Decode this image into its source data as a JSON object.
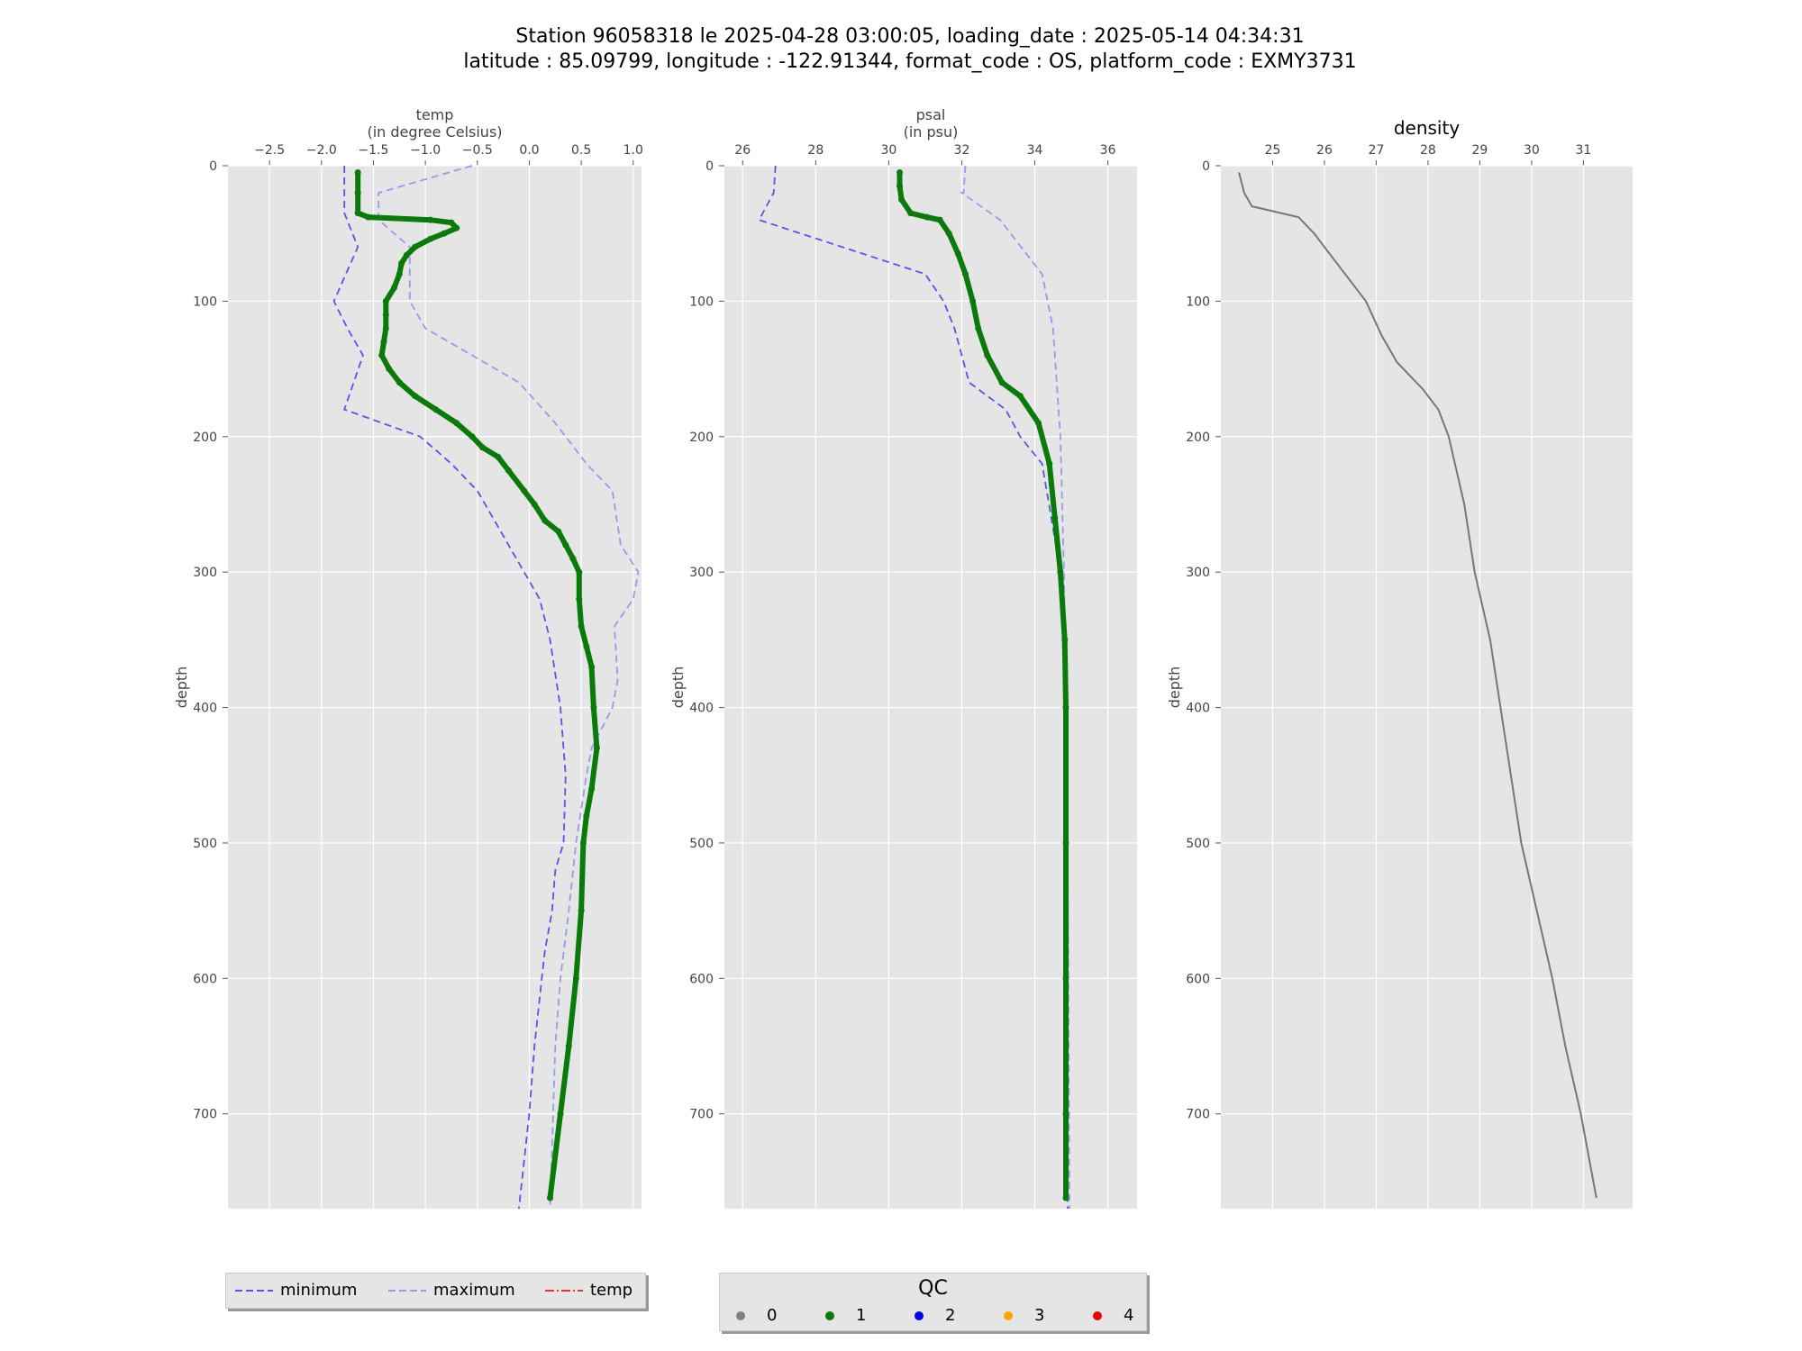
{
  "title": {
    "line1": "Station 96058318 le 2025-04-28 03:00:05, loading_date : 2025-05-14 04:34:31",
    "line2": "latitude : 85.09799, longitude : -122.91344, format_code : OS, platform_code : EXMY3731"
  },
  "colors": {
    "minimum": "#5555ee",
    "maximum": "#9999ee",
    "temp_line": "#ee3333",
    "qc1": "#0a7a0a",
    "density": "#777777",
    "panel_bg": "#e5e5e5",
    "grid": "#ffffff"
  },
  "legend": {
    "minimum": "minimum",
    "maximum": "maximum",
    "temp": "temp"
  },
  "qc_legend": {
    "title": "QC",
    "items": [
      {
        "label": "0",
        "color": "#808080"
      },
      {
        "label": "1",
        "color": "#0a7a0a"
      },
      {
        "label": "2",
        "color": "#0000ee"
      },
      {
        "label": "3",
        "color": "#ffa500"
      },
      {
        "label": "4",
        "color": "#ee0000"
      }
    ]
  },
  "chart_data": [
    {
      "type": "line",
      "title": "temp\n(in degree Celsius)",
      "xlabel": "",
      "ylabel": "depth",
      "xlim": [
        -2.9,
        1.08
      ],
      "ylim": [
        770,
        0
      ],
      "y_inverted": true,
      "x_axis_position": "top",
      "xticks": [
        -2.5,
        -2.0,
        -1.5,
        -1.0,
        -0.5,
        0.0,
        0.5,
        1.0
      ],
      "xtick_labels": [
        "−2.5",
        "−2.0",
        "−1.5",
        "−1.0",
        "−0.5",
        "0.0",
        "0.5",
        "1.0"
      ],
      "yticks": [
        0,
        100,
        200,
        300,
        400,
        500,
        600,
        700
      ],
      "ytick_labels": [
        "0",
        "100",
        "200",
        "300",
        "400",
        "500",
        "600",
        "700"
      ],
      "series": [
        {
          "name": "minimum",
          "style": "dashed",
          "color": "#5555ee",
          "points": [
            [
              -1.78,
              0
            ],
            [
              -1.78,
              35
            ],
            [
              -1.65,
              60
            ],
            [
              -1.88,
              100
            ],
            [
              -1.75,
              120
            ],
            [
              -1.6,
              140
            ],
            [
              -1.78,
              180
            ],
            [
              -1.05,
              200
            ],
            [
              -0.75,
              220
            ],
            [
              -0.5,
              240
            ],
            [
              -0.35,
              260
            ],
            [
              -0.05,
              300
            ],
            [
              0.1,
              320
            ],
            [
              0.2,
              350
            ],
            [
              0.3,
              400
            ],
            [
              0.35,
              450
            ],
            [
              0.33,
              500
            ],
            [
              0.25,
              520
            ],
            [
              0.22,
              550
            ],
            [
              0.15,
              580
            ],
            [
              0.12,
              600
            ],
            [
              0.05,
              650
            ],
            [
              0.0,
              700
            ],
            [
              -0.1,
              770
            ]
          ]
        },
        {
          "name": "maximum",
          "style": "dashed",
          "color": "#9999ee",
          "points": [
            [
              -0.55,
              0
            ],
            [
              -1.45,
              20
            ],
            [
              -1.45,
              40
            ],
            [
              -1.15,
              60
            ],
            [
              -1.15,
              80
            ],
            [
              -1.15,
              100
            ],
            [
              -1.0,
              120
            ],
            [
              -0.55,
              140
            ],
            [
              -0.1,
              160
            ],
            [
              0.25,
              190
            ],
            [
              0.55,
              220
            ],
            [
              0.8,
              240
            ],
            [
              0.88,
              280
            ],
            [
              1.05,
              300
            ],
            [
              1.0,
              320
            ],
            [
              0.82,
              340
            ],
            [
              0.85,
              380
            ],
            [
              0.8,
              400
            ],
            [
              0.6,
              430
            ],
            [
              0.55,
              450
            ],
            [
              0.45,
              500
            ],
            [
              0.38,
              550
            ],
            [
              0.3,
              600
            ],
            [
              0.25,
              650
            ],
            [
              0.2,
              770
            ]
          ]
        },
        {
          "name": "temp",
          "style": "dashdot",
          "color": "#ee3333",
          "points": []
        }
      ],
      "qc1": [
        [
          -1.65,
          5
        ],
        [
          -1.65,
          20
        ],
        [
          -1.65,
          35
        ],
        [
          -1.55,
          38
        ],
        [
          -0.95,
          40
        ],
        [
          -0.75,
          42
        ],
        [
          -0.7,
          46
        ],
        [
          -0.82,
          50
        ],
        [
          -0.95,
          54
        ],
        [
          -1.1,
          60
        ],
        [
          -1.18,
          66
        ],
        [
          -1.23,
          72
        ],
        [
          -1.25,
          80
        ],
        [
          -1.3,
          90
        ],
        [
          -1.38,
          100
        ],
        [
          -1.38,
          110
        ],
        [
          -1.38,
          120
        ],
        [
          -1.4,
          130
        ],
        [
          -1.42,
          140
        ],
        [
          -1.35,
          150
        ],
        [
          -1.25,
          160
        ],
        [
          -1.1,
          170
        ],
        [
          -0.9,
          180
        ],
        [
          -0.7,
          190
        ],
        [
          -0.55,
          200
        ],
        [
          -0.45,
          208
        ],
        [
          -0.3,
          215
        ],
        [
          -0.2,
          225
        ],
        [
          -0.05,
          240
        ],
        [
          0.05,
          250
        ],
        [
          0.15,
          262
        ],
        [
          0.28,
          270
        ],
        [
          0.35,
          280
        ],
        [
          0.42,
          290
        ],
        [
          0.48,
          300
        ],
        [
          0.48,
          320
        ],
        [
          0.5,
          340
        ],
        [
          0.55,
          355
        ],
        [
          0.6,
          370
        ],
        [
          0.62,
          400
        ],
        [
          0.65,
          430
        ],
        [
          0.6,
          460
        ],
        [
          0.55,
          480
        ],
        [
          0.52,
          500
        ],
        [
          0.5,
          550
        ],
        [
          0.45,
          600
        ],
        [
          0.38,
          650
        ],
        [
          0.3,
          700
        ],
        [
          0.2,
          762
        ]
      ]
    },
    {
      "type": "line",
      "title": "psal\n(in psu)",
      "xlabel": "",
      "ylabel": "depth",
      "xlim": [
        25.5,
        36.8
      ],
      "ylim": [
        770,
        0
      ],
      "y_inverted": true,
      "x_axis_position": "top",
      "xticks": [
        26,
        28,
        30,
        32,
        34,
        36
      ],
      "xtick_labels": [
        "26",
        "28",
        "30",
        "32",
        "34",
        "36"
      ],
      "yticks": [
        0,
        100,
        200,
        300,
        400,
        500,
        600,
        700
      ],
      "ytick_labels": [
        "0",
        "100",
        "200",
        "300",
        "400",
        "500",
        "600",
        "700"
      ],
      "series": [
        {
          "name": "minimum",
          "style": "dashed",
          "color": "#5555ee",
          "points": [
            [
              26.9,
              0
            ],
            [
              26.85,
              20
            ],
            [
              26.45,
              40
            ],
            [
              31.0,
              80
            ],
            [
              31.5,
              100
            ],
            [
              31.8,
              120
            ],
            [
              32.2,
              160
            ],
            [
              33.2,
              180
            ],
            [
              33.6,
              200
            ],
            [
              34.2,
              220
            ],
            [
              34.45,
              260
            ],
            [
              34.7,
              300
            ],
            [
              34.85,
              400
            ],
            [
              34.88,
              600
            ],
            [
              34.9,
              770
            ]
          ]
        },
        {
          "name": "maximum",
          "style": "dashed",
          "color": "#9999ee",
          "points": [
            [
              32.1,
              0
            ],
            [
              32.05,
              20
            ],
            [
              32.0,
              20
            ],
            [
              33.05,
              40
            ],
            [
              34.2,
              80
            ],
            [
              34.5,
              120
            ],
            [
              34.6,
              160
            ],
            [
              34.7,
              200
            ],
            [
              34.8,
              300
            ],
            [
              34.9,
              500
            ],
            [
              34.95,
              770
            ]
          ]
        }
      ],
      "qc1": [
        [
          30.3,
          5
        ],
        [
          30.3,
          15
        ],
        [
          30.35,
          25
        ],
        [
          30.6,
          35
        ],
        [
          31.05,
          38
        ],
        [
          31.4,
          40
        ],
        [
          31.65,
          50
        ],
        [
          31.9,
          65
        ],
        [
          32.1,
          80
        ],
        [
          32.3,
          100
        ],
        [
          32.45,
          120
        ],
        [
          32.7,
          140
        ],
        [
          33.1,
          160
        ],
        [
          33.6,
          170
        ],
        [
          34.1,
          190
        ],
        [
          34.4,
          220
        ],
        [
          34.55,
          260
        ],
        [
          34.7,
          300
        ],
        [
          34.82,
          350
        ],
        [
          34.85,
          400
        ],
        [
          34.85,
          500
        ],
        [
          34.85,
          600
        ],
        [
          34.85,
          700
        ],
        [
          34.85,
          762
        ]
      ]
    },
    {
      "type": "line",
      "title": "density",
      "xlabel": "",
      "ylabel": "depth",
      "xlim": [
        24.0,
        31.95
      ],
      "ylim": [
        770,
        0
      ],
      "y_inverted": true,
      "x_axis_position": "top",
      "xticks": [
        25,
        26,
        27,
        28,
        29,
        30,
        31
      ],
      "xtick_labels": [
        "25",
        "26",
        "27",
        "28",
        "29",
        "30",
        "31"
      ],
      "yticks": [
        0,
        100,
        200,
        300,
        400,
        500,
        600,
        700
      ],
      "ytick_labels": [
        "0",
        "100",
        "200",
        "300",
        "400",
        "500",
        "600",
        "700"
      ],
      "series": [
        {
          "name": "density",
          "style": "solid",
          "color": "#777777",
          "points": [
            [
              24.35,
              5
            ],
            [
              24.45,
              20
            ],
            [
              24.6,
              30
            ],
            [
              25.05,
              34
            ],
            [
              25.5,
              38
            ],
            [
              25.8,
              50
            ],
            [
              26.1,
              65
            ],
            [
              26.5,
              85
            ],
            [
              26.8,
              100
            ],
            [
              27.1,
              125
            ],
            [
              27.4,
              145
            ],
            [
              27.9,
              165
            ],
            [
              28.2,
              180
            ],
            [
              28.4,
              200
            ],
            [
              28.7,
              250
            ],
            [
              28.9,
              300
            ],
            [
              29.2,
              350
            ],
            [
              29.4,
              400
            ],
            [
              29.6,
              450
            ],
            [
              29.8,
              500
            ],
            [
              30.1,
              550
            ],
            [
              30.4,
              600
            ],
            [
              30.65,
              650
            ],
            [
              30.95,
              700
            ],
            [
              31.25,
              762
            ]
          ]
        }
      ]
    }
  ]
}
